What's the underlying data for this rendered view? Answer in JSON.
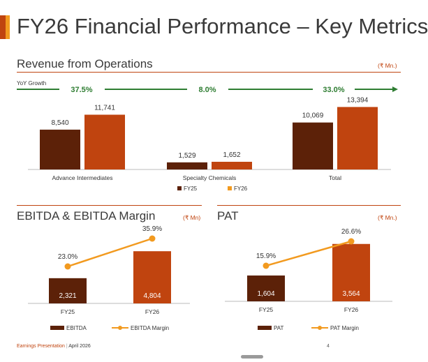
{
  "page": {
    "title": "FY26 Financial Performance – Key Metrics",
    "footer_brand": "Earnings Presentation",
    "footer_separator": "|",
    "footer_date": "April 2026",
    "page_number": "4"
  },
  "colors": {
    "fy25": "#5c2108",
    "fy26": "#c0440f",
    "margin_line": "#f29a1f",
    "growth": "#2e7d32",
    "accent": "#c0440f"
  },
  "chart_data": [
    {
      "type": "bar",
      "title": "Revenue from Operations",
      "unit": "(₹ Mn.)",
      "categories": [
        "Advance Intermediates",
        "Specialty Chemicals",
        "Total"
      ],
      "series": [
        {
          "name": "FY25",
          "values": [
            8540,
            1529,
            10069
          ],
          "labels": [
            "8,540",
            "1,529",
            "10,069"
          ]
        },
        {
          "name": "FY26",
          "values": [
            11741,
            1652,
            13394
          ],
          "labels": [
            "11,741",
            "1,652",
            "13,394"
          ]
        }
      ],
      "yoy_growth": {
        "label": "YoY Growth",
        "values": [
          "37.5%",
          "8.0%",
          "33.0%"
        ]
      },
      "ylim": [
        0,
        14500
      ],
      "legend": "bottom-center",
      "grid": false
    },
    {
      "type": "bar",
      "title": "EBITDA & EBITDA Margin",
      "unit": "(₹ Mn)",
      "categories": [
        "FY25",
        "FY26"
      ],
      "series": [
        {
          "name": "EBITDA",
          "values": [
            2321,
            4804
          ],
          "labels": [
            "2,321",
            "4,804"
          ]
        },
        {
          "name": "EBITDA Margin",
          "type": "line",
          "values": [
            23.0,
            35.9
          ],
          "labels": [
            "23.0%",
            "35.9%"
          ]
        }
      ],
      "ylim": [
        0,
        5200
      ],
      "legend": "bottom-center",
      "grid": false
    },
    {
      "type": "bar",
      "title": "PAT",
      "unit": "(₹ Mn.)",
      "categories": [
        "FY25",
        "FY26"
      ],
      "series": [
        {
          "name": "PAT",
          "values": [
            1604,
            3564
          ],
          "labels": [
            "1,604",
            "3,564"
          ]
        },
        {
          "name": "PAT Margin",
          "type": "line",
          "values": [
            15.9,
            26.6
          ],
          "labels": [
            "15.9%",
            "26.6%"
          ]
        }
      ],
      "ylim": [
        0,
        3900
      ],
      "legend": "bottom-center",
      "grid": false
    }
  ]
}
